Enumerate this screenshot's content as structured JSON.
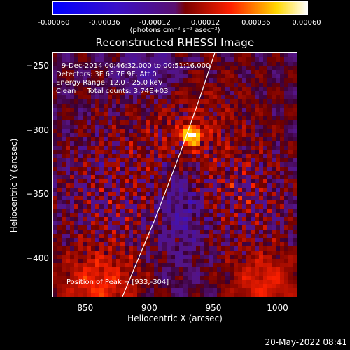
{
  "colorbar": {
    "ticks": [
      "-0.00060",
      "-0.00036",
      "-0.00012",
      "0.00012",
      "0.00036",
      "0.00060"
    ],
    "units": "(photons cm⁻² s⁻¹ asec⁻²)"
  },
  "chart_data": {
    "type": "heatmap",
    "title": "Reconstructed RHESSI Image",
    "xlabel": "Heliocentric X (arcsec)",
    "ylabel": "Heliocentric Y (arcsec)",
    "xlim": [
      825,
      1015
    ],
    "ylim": [
      -430,
      -240
    ],
    "xticks": [
      "850",
      "900",
      "950",
      "1000"
    ],
    "yticks": [
      "-250",
      "-300",
      "-350",
      "-400"
    ],
    "zlim": [
      -0.0006,
      0.0006
    ],
    "colormap": "blue-purple-red-yellow-white",
    "peak": [
      933,
      -304
    ],
    "limb_curve_points": [
      [
        879,
        -430
      ],
      [
        905,
        -368
      ],
      [
        924,
        -318
      ],
      [
        940,
        -273
      ],
      [
        951,
        -240
      ]
    ],
    "annotations": {
      "time_range": "9-Dec-2014 00:46:32.000 to 00:51:16.000",
      "detectors": "Detectors: 3F 6F 7F 9F, Att 0",
      "energy": "Energy Range: 12.0 - 25.0 keV",
      "clean": "Clean     Total counts: 3.74E+03",
      "peak_label": "Position of Peak = [933,-304]"
    }
  },
  "timestamp": "20-May-2022 08:41"
}
